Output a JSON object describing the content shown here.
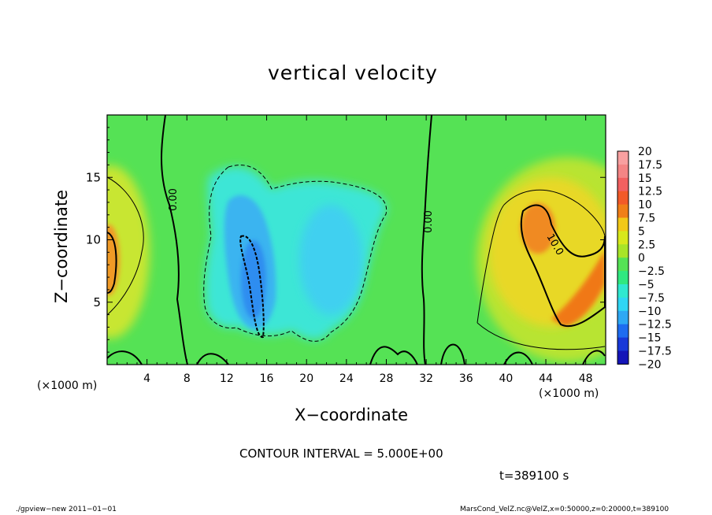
{
  "title": "vertical velocity",
  "axes": {
    "xlabel": "X−coordinate",
    "ylabel": "Z−coordinate",
    "x_unit_left": "(×1000 m)",
    "x_unit_right": "(×1000 m)"
  },
  "contour_interval": "CONTOUR INTERVAL = 5.000E+00",
  "time_label": "t=389100 s",
  "footer": {
    "left": "./gpview−new   2011−01−01",
    "right": "MarsCond_VelZ.nc@VelZ,x=0:50000,z=0:20000,t=389100"
  },
  "colors": {
    "background": "#55e255",
    "cold": "#3cb8f0",
    "core": "#2f8df0",
    "warm": "#f0a030",
    "hot": "#f07818"
  },
  "chart_data": {
    "type": "heatmap",
    "title": "vertical velocity",
    "xlabel": "X−coordinate",
    "ylabel": "Z−coordinate",
    "xlim": [
      0,
      50
    ],
    "ylim": [
      0,
      20
    ],
    "x_ticks": [
      4,
      8,
      12,
      16,
      20,
      24,
      28,
      32,
      36,
      40,
      44,
      48
    ],
    "y_ticks": [
      5,
      10,
      15
    ],
    "contour_labels": [
      {
        "text": "0.00",
        "x": 6.6,
        "z": 14.0
      },
      {
        "text": "0.00",
        "x": 32.0,
        "z": 12.3
      },
      {
        "text": "10.0",
        "x": 45.5,
        "z": 9.2
      }
    ],
    "colorbar": {
      "labels": [
        "20",
        "17.5",
        "15",
        "12.5",
        "10",
        "7.5",
        "5",
        "2.5",
        "0",
        "−2.5",
        "−5",
        "−7.5",
        "−10",
        "−12.5",
        "−15",
        "−17.5",
        "−20"
      ],
      "colors": [
        "#f8a0a0",
        "#f48585",
        "#f26060",
        "#f25a28",
        "#f07f18",
        "#f2c818",
        "#d8e81c",
        "#a8e428",
        "#55e255",
        "#30e880",
        "#30e8d0",
        "#30d6f4",
        "#2ea8f4",
        "#1e6cf0",
        "#1838d8",
        "#1414b8",
        "#6a20c0"
      ]
    }
  }
}
